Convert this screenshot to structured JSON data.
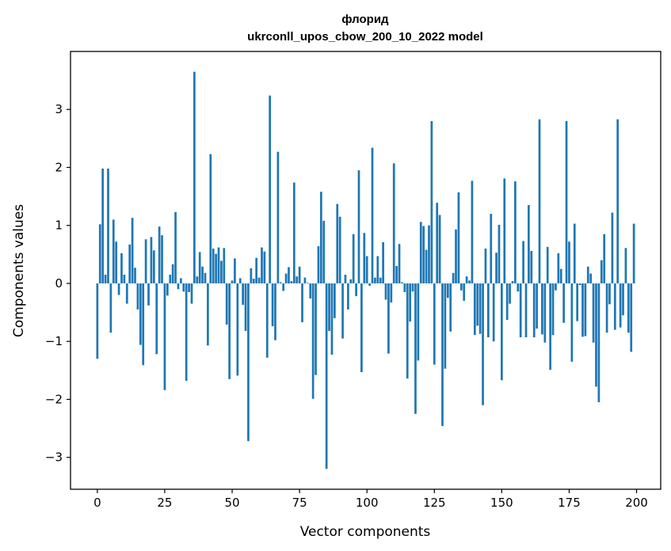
{
  "chart_data": {
    "type": "bar",
    "title": "флорид",
    "subtitle": "ukrconll_upos_cbow_200_10_2022 model",
    "xlabel": "Vector components",
    "ylabel": "Components values",
    "xlim": [
      -9.95,
      208.95
    ],
    "ylim": [
      -3.55,
      4.0
    ],
    "xticks": [
      0,
      25,
      50,
      75,
      100,
      125,
      150,
      175,
      200
    ],
    "yticks": [
      -3,
      -2,
      -1,
      0,
      1,
      2,
      3
    ],
    "xtick_labels": [
      "0",
      "25",
      "50",
      "75",
      "100",
      "125",
      "150",
      "175",
      "200"
    ],
    "ytick_labels": [
      "−3",
      "−2",
      "−1",
      "0",
      "1",
      "2",
      "3"
    ],
    "bar_color": "#1f77b4",
    "grid": false,
    "legend": "none",
    "x_start": 0,
    "values": [
      -1.3,
      1.02,
      1.98,
      0.15,
      1.98,
      -0.85,
      1.1,
      0.72,
      -0.2,
      0.52,
      0.15,
      -0.35,
      0.67,
      1.13,
      0.27,
      -0.45,
      -1.06,
      -1.41,
      0.76,
      -0.38,
      0.8,
      0.57,
      -1.22,
      0.98,
      0.83,
      -1.84,
      -0.21,
      0.15,
      0.33,
      1.23,
      -0.1,
      0.09,
      -0.14,
      -1.68,
      -0.15,
      -0.35,
      3.65,
      0.12,
      0.54,
      0.29,
      0.18,
      -1.07,
      2.23,
      0.6,
      0.51,
      0.62,
      0.39,
      0.61,
      -0.71,
      -1.65,
      0.05,
      0.43,
      -1.59,
      0.09,
      -0.37,
      -0.82,
      -2.72,
      0.26,
      0.08,
      0.44,
      0.1,
      0.62,
      0.55,
      -1.28,
      3.24,
      -0.74,
      -0.98,
      2.27,
      0.02,
      -0.13,
      0.17,
      0.28,
      0.04,
      1.74,
      0.12,
      0.29,
      -0.67,
      0.1,
      0.01,
      -0.26,
      -1.99,
      -1.58,
      0.64,
      1.58,
      1.08,
      -3.2,
      -0.82,
      -1.23,
      -0.6,
      1.37,
      1.15,
      -0.95,
      0.15,
      -0.45,
      0.07,
      0.85,
      -0.22,
      1.95,
      -1.53,
      0.87,
      0.47,
      -0.04,
      2.34,
      0.1,
      0.47,
      0.1,
      0.71,
      -0.28,
      -1.21,
      -0.33,
      2.07,
      0.3,
      0.68,
      0.02,
      -0.15,
      -1.64,
      -0.66,
      -0.14,
      -2.25,
      -1.33,
      1.06,
      0.99,
      0.58,
      1.0,
      2.8,
      -1.4,
      1.39,
      1.18,
      -2.46,
      -1.47,
      -0.25,
      -0.83,
      0.18,
      0.93,
      1.57,
      -0.12,
      -0.3,
      0.12,
      0.05,
      1.77,
      -0.89,
      -0.73,
      -0.87,
      -2.1,
      0.6,
      -0.93,
      1.2,
      -1.0,
      0.53,
      1.01,
      -1.67,
      1.81,
      -0.63,
      -0.35,
      0.04,
      1.76,
      -0.14,
      -0.93,
      0.73,
      -0.93,
      1.35,
      0.56,
      -0.93,
      -0.78,
      2.83,
      -0.88,
      -1.02,
      0.63,
      -1.49,
      -0.89,
      -0.12,
      0.52,
      0.25,
      -0.68,
      2.8,
      0.72,
      -1.35,
      1.03,
      -0.65,
      -0.03,
      -0.92,
      -0.91,
      0.29,
      0.17,
      -1.02,
      -1.78,
      -2.05,
      0.4,
      0.85,
      -0.85,
      -0.36,
      1.22,
      -0.8,
      2.83,
      -0.76,
      -0.55,
      0.61,
      -0.85,
      -1.18,
      1.03
    ]
  }
}
